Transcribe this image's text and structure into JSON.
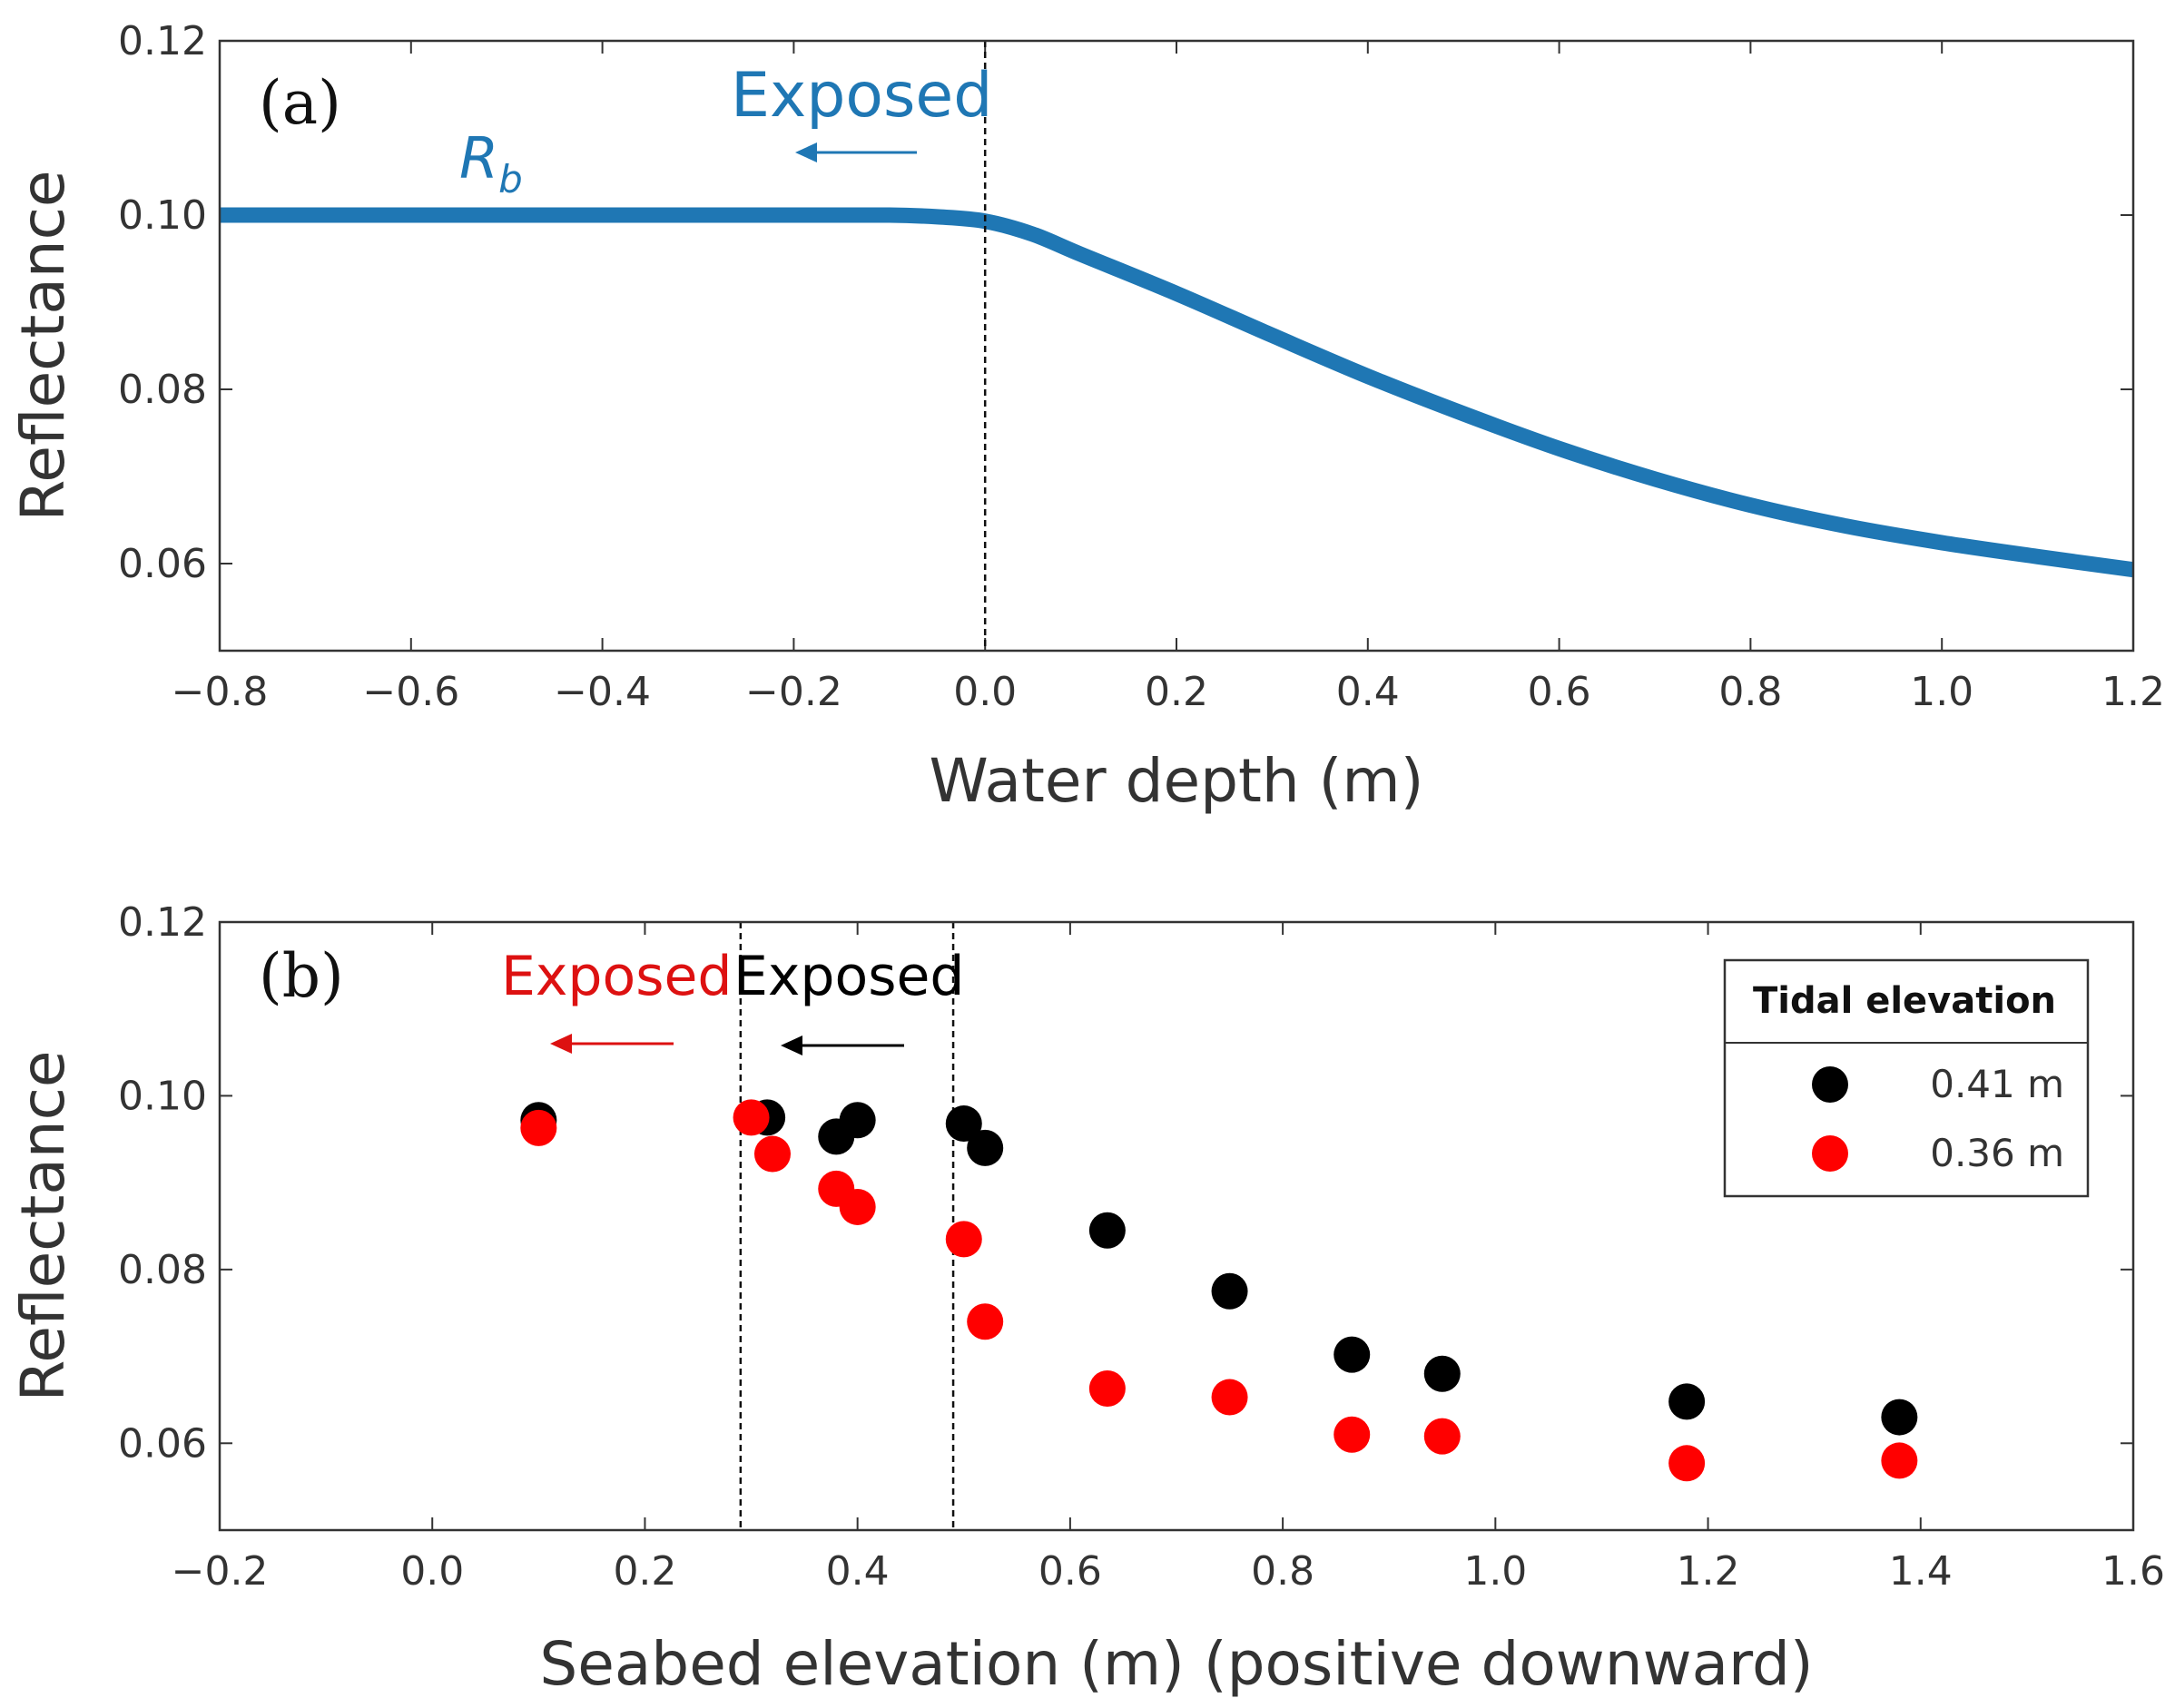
{
  "chart_data": [
    {
      "panel": "(a)",
      "type": "line",
      "xlabel": "Water depth (m)",
      "ylabel": "Reflectance",
      "xlim": [
        -0.8,
        1.2
      ],
      "ylim": [
        0.05,
        0.12
      ],
      "xticks": [
        "−0.8",
        "−0.6",
        "−0.4",
        "−0.2",
        "0.0",
        "0.2",
        "0.4",
        "0.6",
        "0.8",
        "1.0",
        "1.2"
      ],
      "xtick_values": [
        -0.8,
        -0.6,
        -0.4,
        -0.2,
        0.0,
        0.2,
        0.4,
        0.6,
        0.8,
        1.0,
        1.2
      ],
      "yticks": [
        "0.06",
        "0.08",
        "0.10",
        "0.12"
      ],
      "ytick_values": [
        0.06,
        0.08,
        0.1,
        0.12
      ],
      "vline_x": [
        0.0
      ],
      "annotations": {
        "exposed": "Exposed",
        "curve_symbol": "R",
        "curve_subscript": "b"
      },
      "series": [
        {
          "name": "Rb",
          "color": "#1f77b4",
          "x": [
            -0.8,
            -0.6,
            -0.4,
            -0.2,
            -0.1,
            -0.05,
            0.0,
            0.05,
            0.1,
            0.2,
            0.3,
            0.4,
            0.5,
            0.6,
            0.7,
            0.8,
            0.9,
            1.0,
            1.1,
            1.2
          ],
          "y": [
            0.1,
            0.1,
            0.1,
            0.1,
            0.1,
            0.0998,
            0.0993,
            0.0978,
            0.0955,
            0.091,
            0.0862,
            0.0815,
            0.0772,
            0.0732,
            0.0697,
            0.0667,
            0.0643,
            0.0624,
            0.0608,
            0.0593
          ]
        }
      ]
    },
    {
      "panel": "(b)",
      "type": "scatter",
      "xlabel": "Seabed elevation (m) (positive downward)",
      "ylabel": "Reflectance",
      "xlim": [
        -0.2,
        1.6
      ],
      "ylim": [
        0.05,
        0.12
      ],
      "xticks": [
        "−0.2",
        "0.0",
        "0.2",
        "0.4",
        "0.6",
        "0.8",
        "1.0",
        "1.2",
        "1.4",
        "1.6"
      ],
      "xtick_values": [
        -0.2,
        0.0,
        0.2,
        0.4,
        0.6,
        0.8,
        1.0,
        1.2,
        1.4,
        1.6
      ],
      "yticks": [
        "0.06",
        "0.08",
        "0.10",
        "0.12"
      ],
      "ytick_values": [
        0.06,
        0.08,
        0.1,
        0.12
      ],
      "vline_x": [
        0.29,
        0.49
      ],
      "annotations": {
        "exposed_red": "Exposed",
        "exposed_black": "Exposed"
      },
      "legend": {
        "title": "Tidal elevation",
        "placement": "top-right"
      },
      "series": [
        {
          "name": "0.41 m",
          "color": "#000000",
          "x": [
            0.1,
            0.315,
            0.38,
            0.4,
            0.5,
            0.52,
            0.635,
            0.75,
            0.865,
            0.95,
            1.18,
            1.38
          ],
          "y": [
            0.0972,
            0.0975,
            0.0953,
            0.0972,
            0.0968,
            0.094,
            0.0845,
            0.0775,
            0.0702,
            0.068,
            0.0648,
            0.063
          ]
        },
        {
          "name": "0.36 m",
          "color": "#ff0000",
          "x": [
            0.1,
            0.3,
            0.32,
            0.38,
            0.4,
            0.5,
            0.52,
            0.635,
            0.75,
            0.865,
            0.95,
            1.18,
            1.38
          ],
          "y": [
            0.0963,
            0.0975,
            0.0933,
            0.0893,
            0.0872,
            0.0835,
            0.074,
            0.0663,
            0.0653,
            0.061,
            0.0608,
            0.0577,
            0.058
          ]
        }
      ]
    }
  ]
}
